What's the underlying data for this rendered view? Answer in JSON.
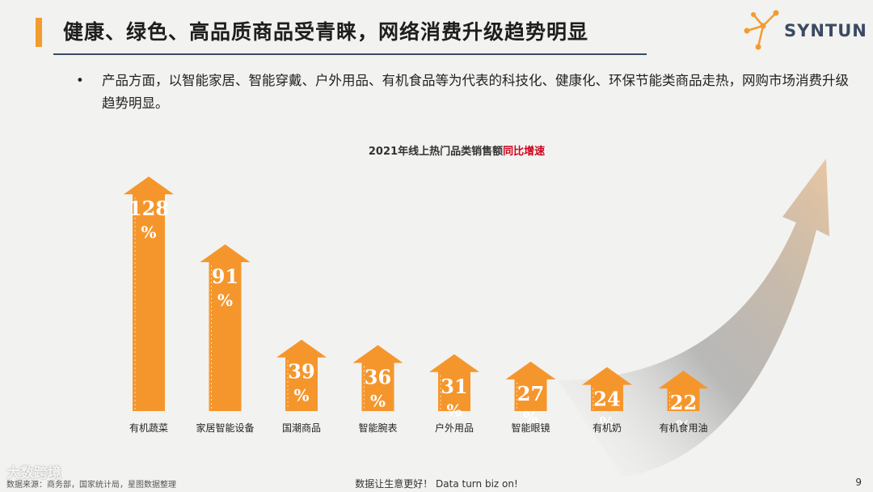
{
  "header": {
    "title": "健康、绿色、高品质商品受青睐，网络消费升级趋势明显",
    "logo_text": "SYNTUN"
  },
  "bullet": {
    "text": "产品方面，以智能家居、智能穿戴、户外用品、有机食品等为代表的科技化、健康化、环保节能类商品走热，网购市场消费升级趋势明显。"
  },
  "chart_title": {
    "main": "2021年线上热门品类销售额",
    "highlight": "同比增速"
  },
  "colors": {
    "accent": "#f39c2e",
    "bar": "#f5962c",
    "highlight": "#d0021b",
    "title_rule": "#3a4a66"
  },
  "chart_data": {
    "type": "bar",
    "title": "2021年线上热门品类销售额同比增速",
    "categories": [
      "有机蔬菜",
      "家居智能设备",
      "国潮商品",
      "智能腕表",
      "户外用品",
      "智能眼镜",
      "有机奶",
      "有机食用油"
    ],
    "values": [
      128,
      91,
      39,
      36,
      31,
      27,
      24,
      22
    ],
    "value_suffix": "%",
    "ylim": [
      0,
      140
    ],
    "grid": false,
    "legend": "none",
    "mark_shape": "up-arrow"
  },
  "footer": {
    "source": "数据来源：商务部，国家统计局，星图数据整理",
    "slogan": "数据让生意更好！ Data turn biz on!",
    "page_number": "9",
    "watermark": "大数跨境"
  }
}
